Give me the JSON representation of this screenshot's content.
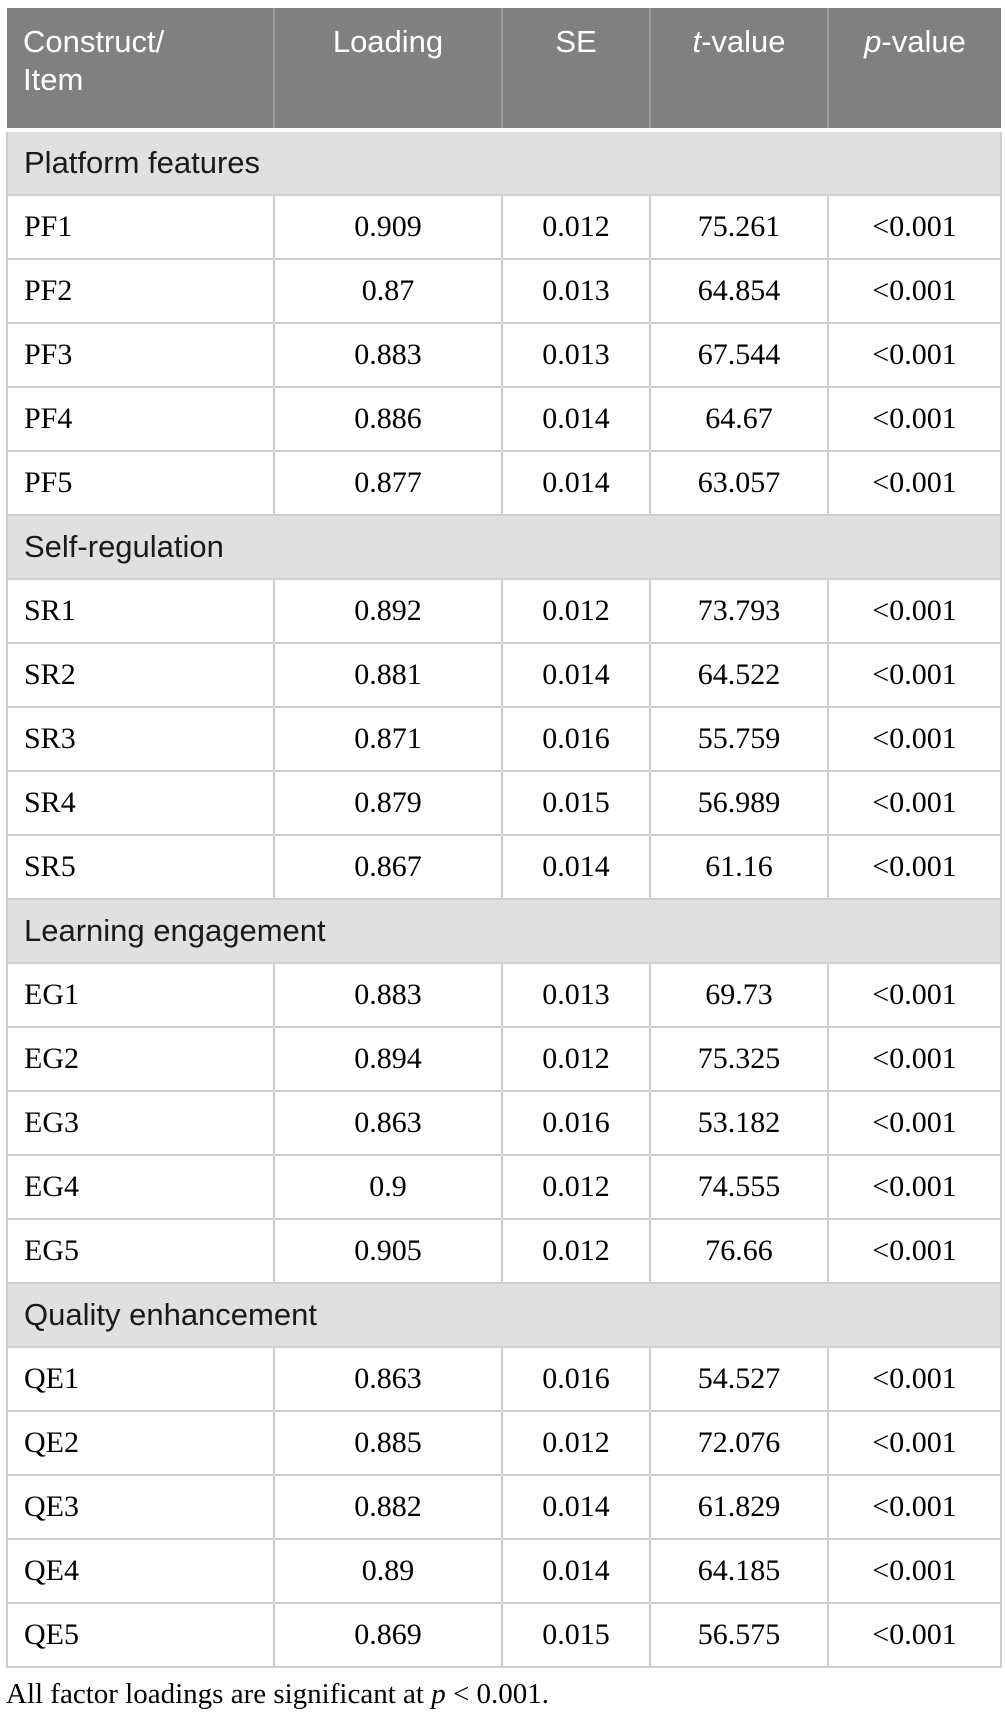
{
  "table": {
    "header": {
      "col1_line1": "Construct/",
      "col1_line2": "Item",
      "col2": "Loading",
      "col3": "SE",
      "col4_italic": "t",
      "col4_rest": "-value",
      "col5_italic": "p",
      "col5_rest": "-value"
    },
    "sections": [
      {
        "label": "Platform features",
        "rows": [
          [
            "PF1",
            "0.909",
            "0.012",
            "75.261",
            "<0.001"
          ],
          [
            "PF2",
            "0.87",
            "0.013",
            "64.854",
            "<0.001"
          ],
          [
            "PF3",
            "0.883",
            "0.013",
            "67.544",
            "<0.001"
          ],
          [
            "PF4",
            "0.886",
            "0.014",
            "64.67",
            "<0.001"
          ],
          [
            "PF5",
            "0.877",
            "0.014",
            "63.057",
            "<0.001"
          ]
        ]
      },
      {
        "label": "Self-regulation",
        "rows": [
          [
            "SR1",
            "0.892",
            "0.012",
            "73.793",
            "<0.001"
          ],
          [
            "SR2",
            "0.881",
            "0.014",
            "64.522",
            "<0.001"
          ],
          [
            "SR3",
            "0.871",
            "0.016",
            "55.759",
            "<0.001"
          ],
          [
            "SR4",
            "0.879",
            "0.015",
            "56.989",
            "<0.001"
          ],
          [
            "SR5",
            "0.867",
            "0.014",
            "61.16",
            "<0.001"
          ]
        ]
      },
      {
        "label": "Learning engagement",
        "rows": [
          [
            "EG1",
            "0.883",
            "0.013",
            "69.73",
            "<0.001"
          ],
          [
            "EG2",
            "0.894",
            "0.012",
            "75.325",
            "<0.001"
          ],
          [
            "EG3",
            "0.863",
            "0.016",
            "53.182",
            "<0.001"
          ],
          [
            "EG4",
            "0.9",
            "0.012",
            "74.555",
            "<0.001"
          ],
          [
            "EG5",
            "0.905",
            "0.012",
            "76.66",
            "<0.001"
          ]
        ]
      },
      {
        "label": "Quality enhancement",
        "rows": [
          [
            "QE1",
            "0.863",
            "0.016",
            "54.527",
            "<0.001"
          ],
          [
            "QE2",
            "0.885",
            "0.012",
            "72.076",
            "<0.001"
          ],
          [
            "QE3",
            "0.882",
            "0.014",
            "61.829",
            "<0.001"
          ],
          [
            "QE4",
            "0.89",
            "0.014",
            "64.185",
            "<0.001"
          ],
          [
            "QE5",
            "0.869",
            "0.015",
            "56.575",
            "<0.001"
          ]
        ]
      }
    ],
    "colors": {
      "header_bg": "#808080",
      "header_text": "#ffffff",
      "section_bg": "#e0e0e0",
      "border": "#cfcfcf"
    }
  },
  "footnote": {
    "pre": "All factor loadings are significant at ",
    "italic": "p",
    "post": " < 0.001."
  }
}
